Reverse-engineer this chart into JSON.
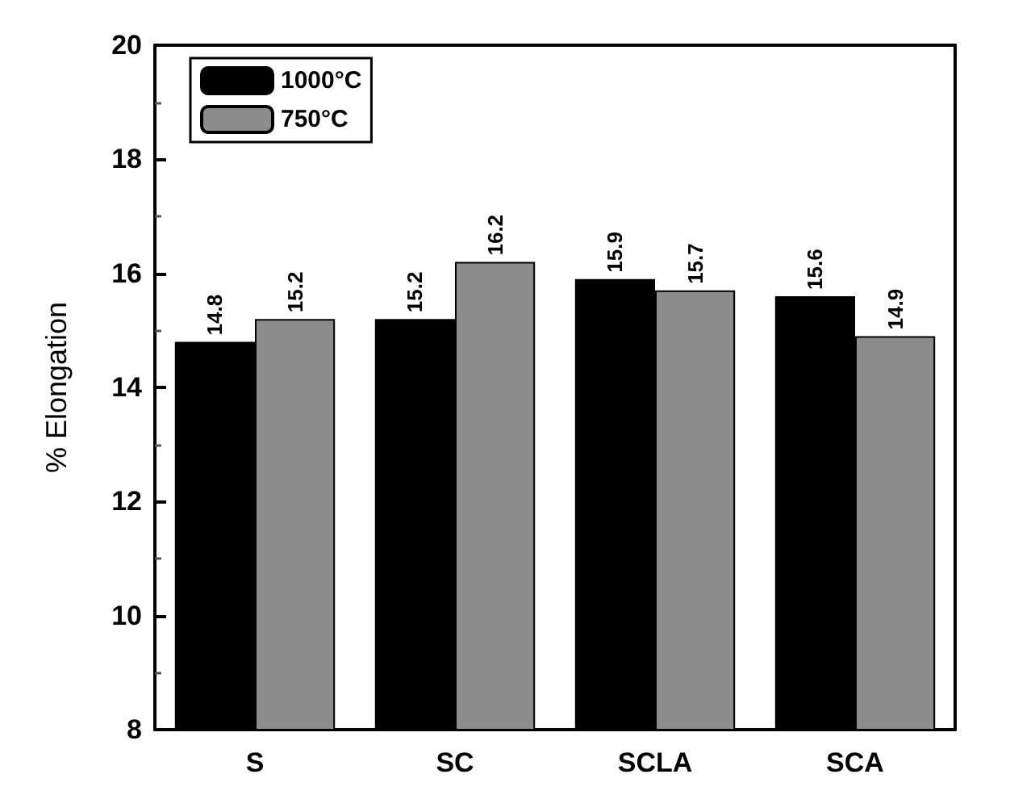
{
  "chart_data": {
    "type": "bar",
    "ylabel": "% Elongation",
    "categories": [
      "S",
      "SC",
      "SCLA",
      "SCA"
    ],
    "series": [
      {
        "name": "1000°C",
        "color": "#000000",
        "values": [
          14.8,
          15.2,
          15.9,
          15.6
        ]
      },
      {
        "name": "750°C",
        "color": "#8c8c8c",
        "values": [
          15.2,
          16.2,
          15.7,
          14.9
        ]
      }
    ],
    "ylim": [
      8,
      20
    ],
    "yticks": [
      8,
      10,
      12,
      14,
      16,
      18,
      20
    ],
    "grid": false,
    "legend": "top left",
    "data_labels": true
  }
}
